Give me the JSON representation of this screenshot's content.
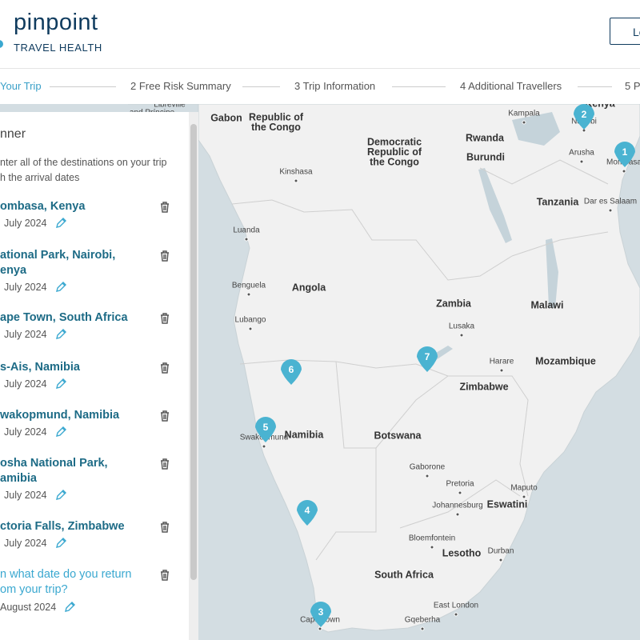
{
  "header": {
    "logo": "pinpoint",
    "tagline": "TRAVEL HEALTH",
    "button": "Lo"
  },
  "steps": [
    "Your Trip",
    "2  Free Risk Summary",
    "3  Trip Information",
    "4  Additional Travellers",
    "5  P"
  ],
  "planner": {
    "title": "nner",
    "instructions": [
      "nter all of the destinations on your trip",
      "h the arrival dates"
    ],
    "destinations": [
      {
        "name": [
          "ombasa, Kenya"
        ],
        "date": "July 2024"
      },
      {
        "name": [
          "ational Park, Nairobi,",
          "enya"
        ],
        "date": "July 2024"
      },
      {
        "name": [
          "ape Town, South Africa"
        ],
        "date": "July 2024"
      },
      {
        "name": [
          "s-Ais, Namibia"
        ],
        "date": "July 2024"
      },
      {
        "name": [
          "wakopmund, Namibia"
        ],
        "date": "July 2024"
      },
      {
        "name": [
          "osha National Park,",
          "amibia"
        ],
        "date": "July 2024"
      },
      {
        "name": [
          "ctoria Falls, Zimbabwe"
        ],
        "date": "July 2024"
      }
    ],
    "return": {
      "question": [
        "n what date do you return",
        "om your trip?"
      ],
      "date": "August 2024"
    }
  },
  "map": {
    "labels": [
      [
        "Libreville"
      ],
      [
        "and Príncipe"
      ],
      [
        "Gabon"
      ],
      [
        "Republic of",
        "the Congo"
      ],
      [
        "Democratic",
        "Republic of",
        "the Congo"
      ],
      [
        "Kampala"
      ],
      [
        "Kenya"
      ],
      [
        "Nairobi"
      ],
      [
        "Rwanda"
      ],
      [
        "Burundi"
      ],
      [
        "Arusha"
      ],
      [
        "Mombasa"
      ],
      [
        "Kinshasa"
      ],
      [
        "Tanzania"
      ],
      [
        "Dar es Salaam"
      ],
      [
        "Luanda"
      ],
      [
        "Benguela"
      ],
      [
        "Angola"
      ],
      [
        "Zambia"
      ],
      [
        "Malawi"
      ],
      [
        "Lubango"
      ],
      [
        "Lusaka"
      ],
      [
        "Harare"
      ],
      [
        "Mozambique"
      ],
      [
        "Zimbabwe"
      ],
      [
        "Namibia"
      ],
      [
        "Botswana"
      ],
      [
        "Swakopmund"
      ],
      [
        "Gaborone"
      ],
      [
        "Pretoria"
      ],
      [
        "Maputo"
      ],
      [
        "Johannesburg"
      ],
      [
        "Eswatini"
      ],
      [
        "Bloemfontein"
      ],
      [
        "Lesotho"
      ],
      [
        "Durban"
      ],
      [
        "South Africa"
      ],
      [
        "East London"
      ],
      [
        "Cape Town"
      ],
      [
        "Gqeberha"
      ]
    ],
    "markers": [
      1,
      2,
      3,
      4,
      5,
      6,
      7
    ]
  }
}
